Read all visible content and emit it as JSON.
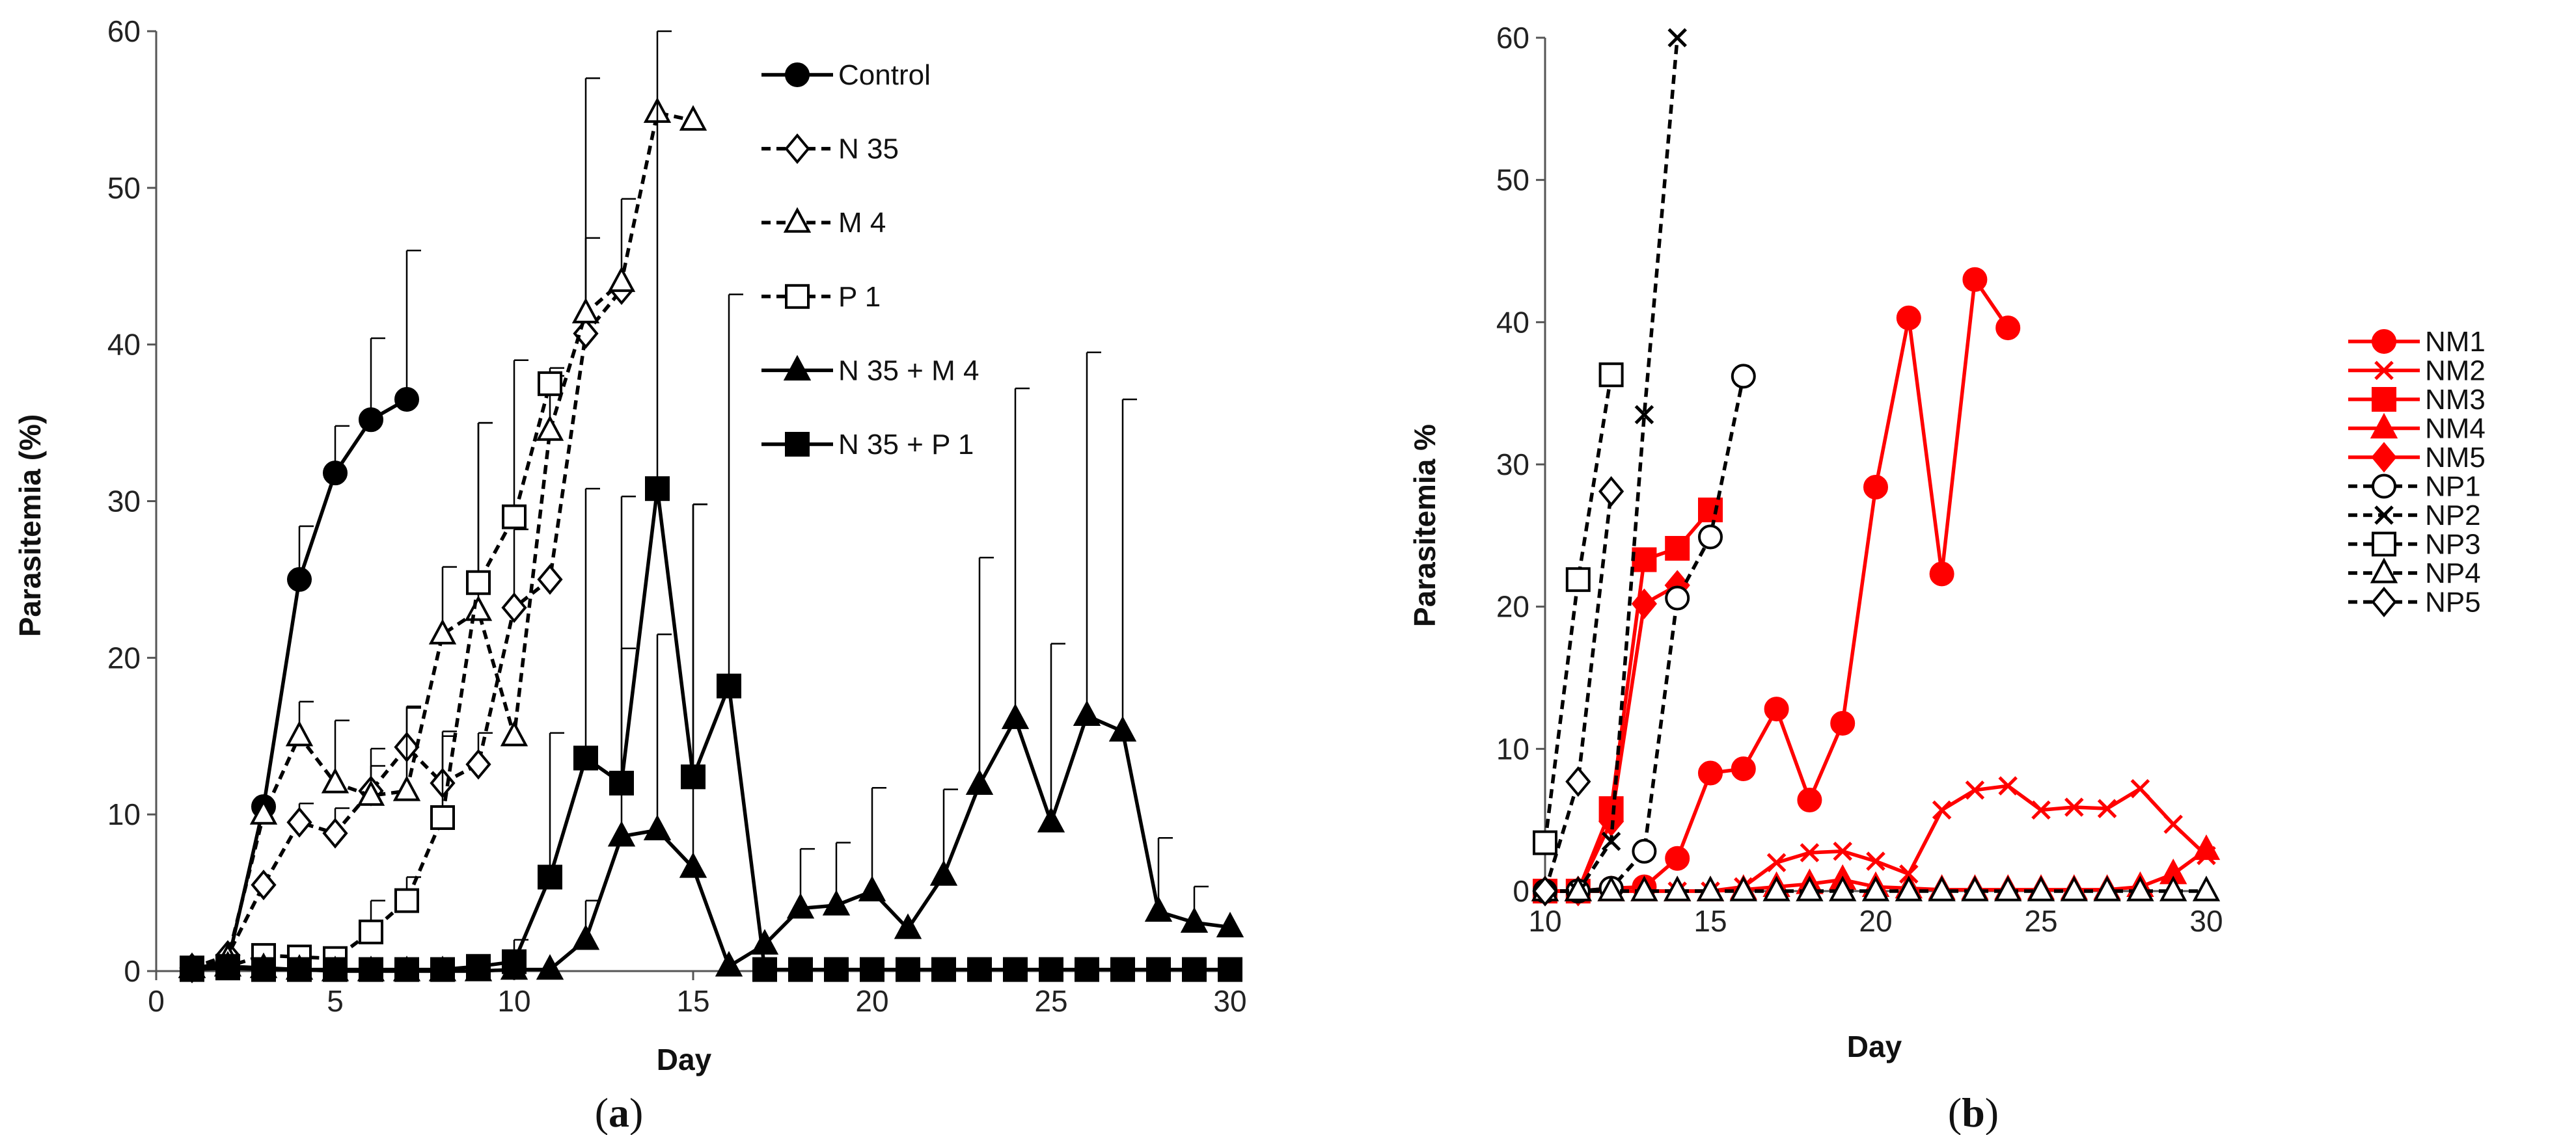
{
  "chart_data": [
    {
      "type": "line",
      "panel": "a",
      "panel_label": "(a)",
      "xlabel": "Day",
      "ylabel": "Parasitemia (%)",
      "xlim": [
        0,
        30
      ],
      "ylim": [
        0,
        60
      ],
      "xticks": [
        0,
        5,
        10,
        15,
        20,
        25,
        30
      ],
      "yticks": [
        0,
        10,
        20,
        30,
        40,
        50,
        60
      ],
      "legend_position": "top-right",
      "series": [
        {
          "name": "Control",
          "color": "#000000",
          "dash": "solid",
          "marker": "circle",
          "fill": "filled",
          "x": [
            1,
            2,
            3,
            4,
            5,
            6,
            7
          ],
          "y": [
            0.2,
            0.5,
            10.5,
            25,
            31.8,
            35.2,
            36.5
          ],
          "err": [
            0,
            0,
            0,
            3.4,
            3,
            5.2,
            9.5
          ]
        },
        {
          "name": "N 35",
          "color": "#000000",
          "dash": "dashed",
          "marker": "diamond",
          "fill": "open",
          "x": [
            1,
            2,
            3,
            4,
            5,
            6,
            7,
            8,
            9,
            10,
            11,
            12,
            13
          ],
          "y": [
            0.2,
            1,
            5.5,
            9.5,
            8.8,
            11.5,
            14.3,
            12,
            13.2,
            23.2,
            25,
            40.7,
            43.5
          ],
          "err": [
            0,
            0,
            0,
            1.2,
            1.6,
            1.6,
            2.6,
            3.3,
            2,
            5,
            0,
            6.1,
            5.8
          ]
        },
        {
          "name": "M 4",
          "color": "#000000",
          "dash": "dashed",
          "marker": "triangle",
          "fill": "open",
          "x": [
            1,
            2,
            3,
            4,
            5,
            6,
            7,
            8,
            9,
            10,
            11,
            12,
            13,
            14,
            15
          ],
          "y": [
            0.2,
            0.8,
            10,
            15,
            12,
            11.2,
            11.5,
            21.5,
            23,
            15,
            34.5,
            42,
            44,
            54.8,
            54.3
          ],
          "err": [
            0,
            0,
            0,
            2.2,
            4,
            3,
            5.3,
            4.3,
            12,
            0,
            3.5,
            15,
            0,
            0,
            0
          ]
        },
        {
          "name": "P 1",
          "color": "#000000",
          "dash": "dashed",
          "marker": "square",
          "fill": "open",
          "x": [
            1,
            2,
            3,
            4,
            5,
            6,
            7,
            8,
            9,
            10,
            11
          ],
          "y": [
            0.2,
            0.3,
            1,
            0.9,
            0.8,
            2.5,
            4.5,
            9.8,
            24.8,
            29,
            37.5
          ],
          "err": [
            0,
            0,
            0,
            0,
            0,
            2,
            1.5,
            5.2,
            10.2,
            10,
            1
          ]
        },
        {
          "name": "N 35 + M 4",
          "color": "#000000",
          "dash": "solid",
          "marker": "triangle",
          "fill": "filled",
          "x": [
            1,
            2,
            3,
            4,
            5,
            6,
            7,
            8,
            9,
            10,
            11,
            12,
            13,
            14,
            15,
            16,
            17,
            18,
            19,
            20,
            21,
            22,
            23,
            24,
            25,
            26,
            27,
            28,
            29,
            30
          ],
          "y": [
            0.2,
            0.3,
            0.2,
            0.1,
            0,
            0,
            0,
            0,
            0,
            0.1,
            0.1,
            2,
            8.6,
            9,
            6.6,
            0.3,
            1.7,
            4,
            4.2,
            5.1,
            2.7,
            6.1,
            11.9,
            16.1,
            9.5,
            16.3,
            15.3,
            3.8,
            3.1,
            2.8
          ],
          "err": [
            0,
            0,
            0,
            0,
            0,
            0,
            0,
            0,
            0,
            0,
            0,
            2.5,
            12,
            12.5,
            23.2,
            0,
            0,
            3.8,
            4,
            6.6,
            0,
            5.5,
            14.5,
            21.1,
            11.4,
            23.2,
            21.2,
            4.7,
            2.3,
            0
          ]
        },
        {
          "name": "N 35 + P 1",
          "color": "#000000",
          "dash": "solid",
          "marker": "square",
          "fill": "filled",
          "x": [
            1,
            2,
            3,
            4,
            5,
            6,
            7,
            8,
            9,
            10,
            11,
            12,
            13,
            14,
            15,
            16,
            17,
            18,
            19,
            20,
            21,
            22,
            23,
            24,
            25,
            26,
            27,
            28,
            29,
            30
          ],
          "y": [
            0.1,
            0.2,
            0.1,
            0.1,
            0.1,
            0.1,
            0.1,
            0.1,
            0.3,
            0.6,
            6,
            13.6,
            12,
            30.8,
            12.4,
            18.2,
            0.1,
            0.1,
            0.1,
            0.1,
            0.1,
            0.1,
            0.1,
            0.1,
            0.1,
            0.1,
            0.1,
            0.1,
            0.1,
            0.1
          ],
          "err": [
            0,
            0,
            0,
            0,
            0,
            0,
            0,
            0,
            0,
            1.4,
            9.2,
            17.2,
            18.3,
            29.2,
            17.4,
            25,
            0,
            0,
            0,
            0,
            0,
            0,
            0,
            0,
            0,
            0,
            0,
            0,
            0,
            0
          ]
        }
      ]
    },
    {
      "type": "line",
      "panel": "b",
      "panel_label": "(b)",
      "xlabel": "Day",
      "ylabel": "Parasitemia %",
      "xlim": [
        10,
        30
      ],
      "ylim": [
        0,
        60
      ],
      "xticks": [
        10,
        15,
        20,
        25,
        30
      ],
      "yticks": [
        0,
        10,
        20,
        30,
        40,
        50,
        60
      ],
      "legend_position": "right",
      "series": [
        {
          "name": "NM1",
          "color": "#ff0000",
          "dash": "solid",
          "marker": "circle",
          "fill": "filled",
          "x": [
            10,
            11,
            12,
            13,
            14,
            15,
            16,
            17,
            18,
            19,
            20,
            21,
            22,
            23,
            24
          ],
          "y": [
            0,
            0,
            0.2,
            0.3,
            2.3,
            8.3,
            8.6,
            12.8,
            6.4,
            11.8,
            28.4,
            40.3,
            22.3,
            43,
            39.6
          ]
        },
        {
          "name": "NM2",
          "color": "#ff0000",
          "dash": "solid",
          "marker": "x",
          "fill": "filled",
          "x": [
            10,
            11,
            12,
            13,
            14,
            15,
            16,
            17,
            18,
            19,
            20,
            21,
            22,
            23,
            24,
            25,
            26,
            27,
            28,
            29,
            30
          ],
          "y": [
            0,
            0,
            0,
            0,
            0,
            0,
            0.3,
            2,
            2.7,
            2.8,
            2.1,
            1.2,
            5.7,
            7.1,
            7.4,
            5.7,
            5.9,
            5.8,
            7.2,
            4.7,
            2.5
          ]
        },
        {
          "name": "NM3",
          "color": "#ff0000",
          "dash": "solid",
          "marker": "square",
          "fill": "filled",
          "x": [
            10,
            11,
            12,
            13,
            14,
            15
          ],
          "y": [
            0,
            0,
            5.8,
            23.3,
            24.1,
            26.8
          ]
        },
        {
          "name": "NM4",
          "color": "#ff0000",
          "dash": "solid",
          "marker": "triangle",
          "fill": "filled",
          "x": [
            10,
            11,
            12,
            13,
            14,
            15,
            16,
            17,
            18,
            19,
            20,
            21,
            22,
            23,
            24,
            25,
            26,
            27,
            28,
            29,
            30
          ],
          "y": [
            0,
            0,
            0,
            0,
            0,
            0,
            0.1,
            0.3,
            0.5,
            0.8,
            0.3,
            0.2,
            0.1,
            0.1,
            0.1,
            0.1,
            0.1,
            0.1,
            0.3,
            1.2,
            2.9
          ]
        },
        {
          "name": "NM5",
          "color": "#ff0000",
          "dash": "solid",
          "marker": "diamond",
          "fill": "filled",
          "x": [
            10,
            11,
            12,
            13,
            14
          ],
          "y": [
            0,
            0,
            4.9,
            20.2,
            21.5
          ]
        },
        {
          "name": "NP1",
          "color": "#000000",
          "dash": "dashed",
          "marker": "circle",
          "fill": "open",
          "x": [
            10,
            11,
            12,
            13,
            14,
            15,
            16
          ],
          "y": [
            0,
            0,
            0.2,
            2.8,
            20.6,
            24.9,
            36.2
          ]
        },
        {
          "name": "NP2",
          "color": "#000000",
          "dash": "dashed",
          "marker": "x",
          "fill": "filled",
          "x": [
            10,
            11,
            12,
            13,
            14
          ],
          "y": [
            0,
            0,
            3.5,
            33.5,
            60
          ]
        },
        {
          "name": "NP3",
          "color": "#000000",
          "dash": "dashed",
          "marker": "square",
          "fill": "open",
          "x": [
            10,
            11,
            12
          ],
          "y": [
            3.4,
            21.9,
            36.3
          ]
        },
        {
          "name": "NP4",
          "color": "#000000",
          "dash": "dashed",
          "marker": "triangle",
          "fill": "open",
          "x": [
            10,
            11,
            12,
            13,
            14,
            15,
            16,
            17,
            18,
            19,
            20,
            21,
            22,
            23,
            24,
            25,
            26,
            27,
            28,
            29,
            30
          ],
          "y": [
            0,
            0,
            0,
            0,
            0,
            0,
            0,
            0,
            0,
            0,
            0,
            0,
            0,
            0,
            0,
            0,
            0,
            0,
            0,
            0,
            0
          ]
        },
        {
          "name": "NP5",
          "color": "#000000",
          "dash": "dashed",
          "marker": "diamond",
          "fill": "open",
          "x": [
            10,
            11,
            12
          ],
          "y": [
            0,
            7.7,
            28.1
          ]
        }
      ]
    }
  ]
}
